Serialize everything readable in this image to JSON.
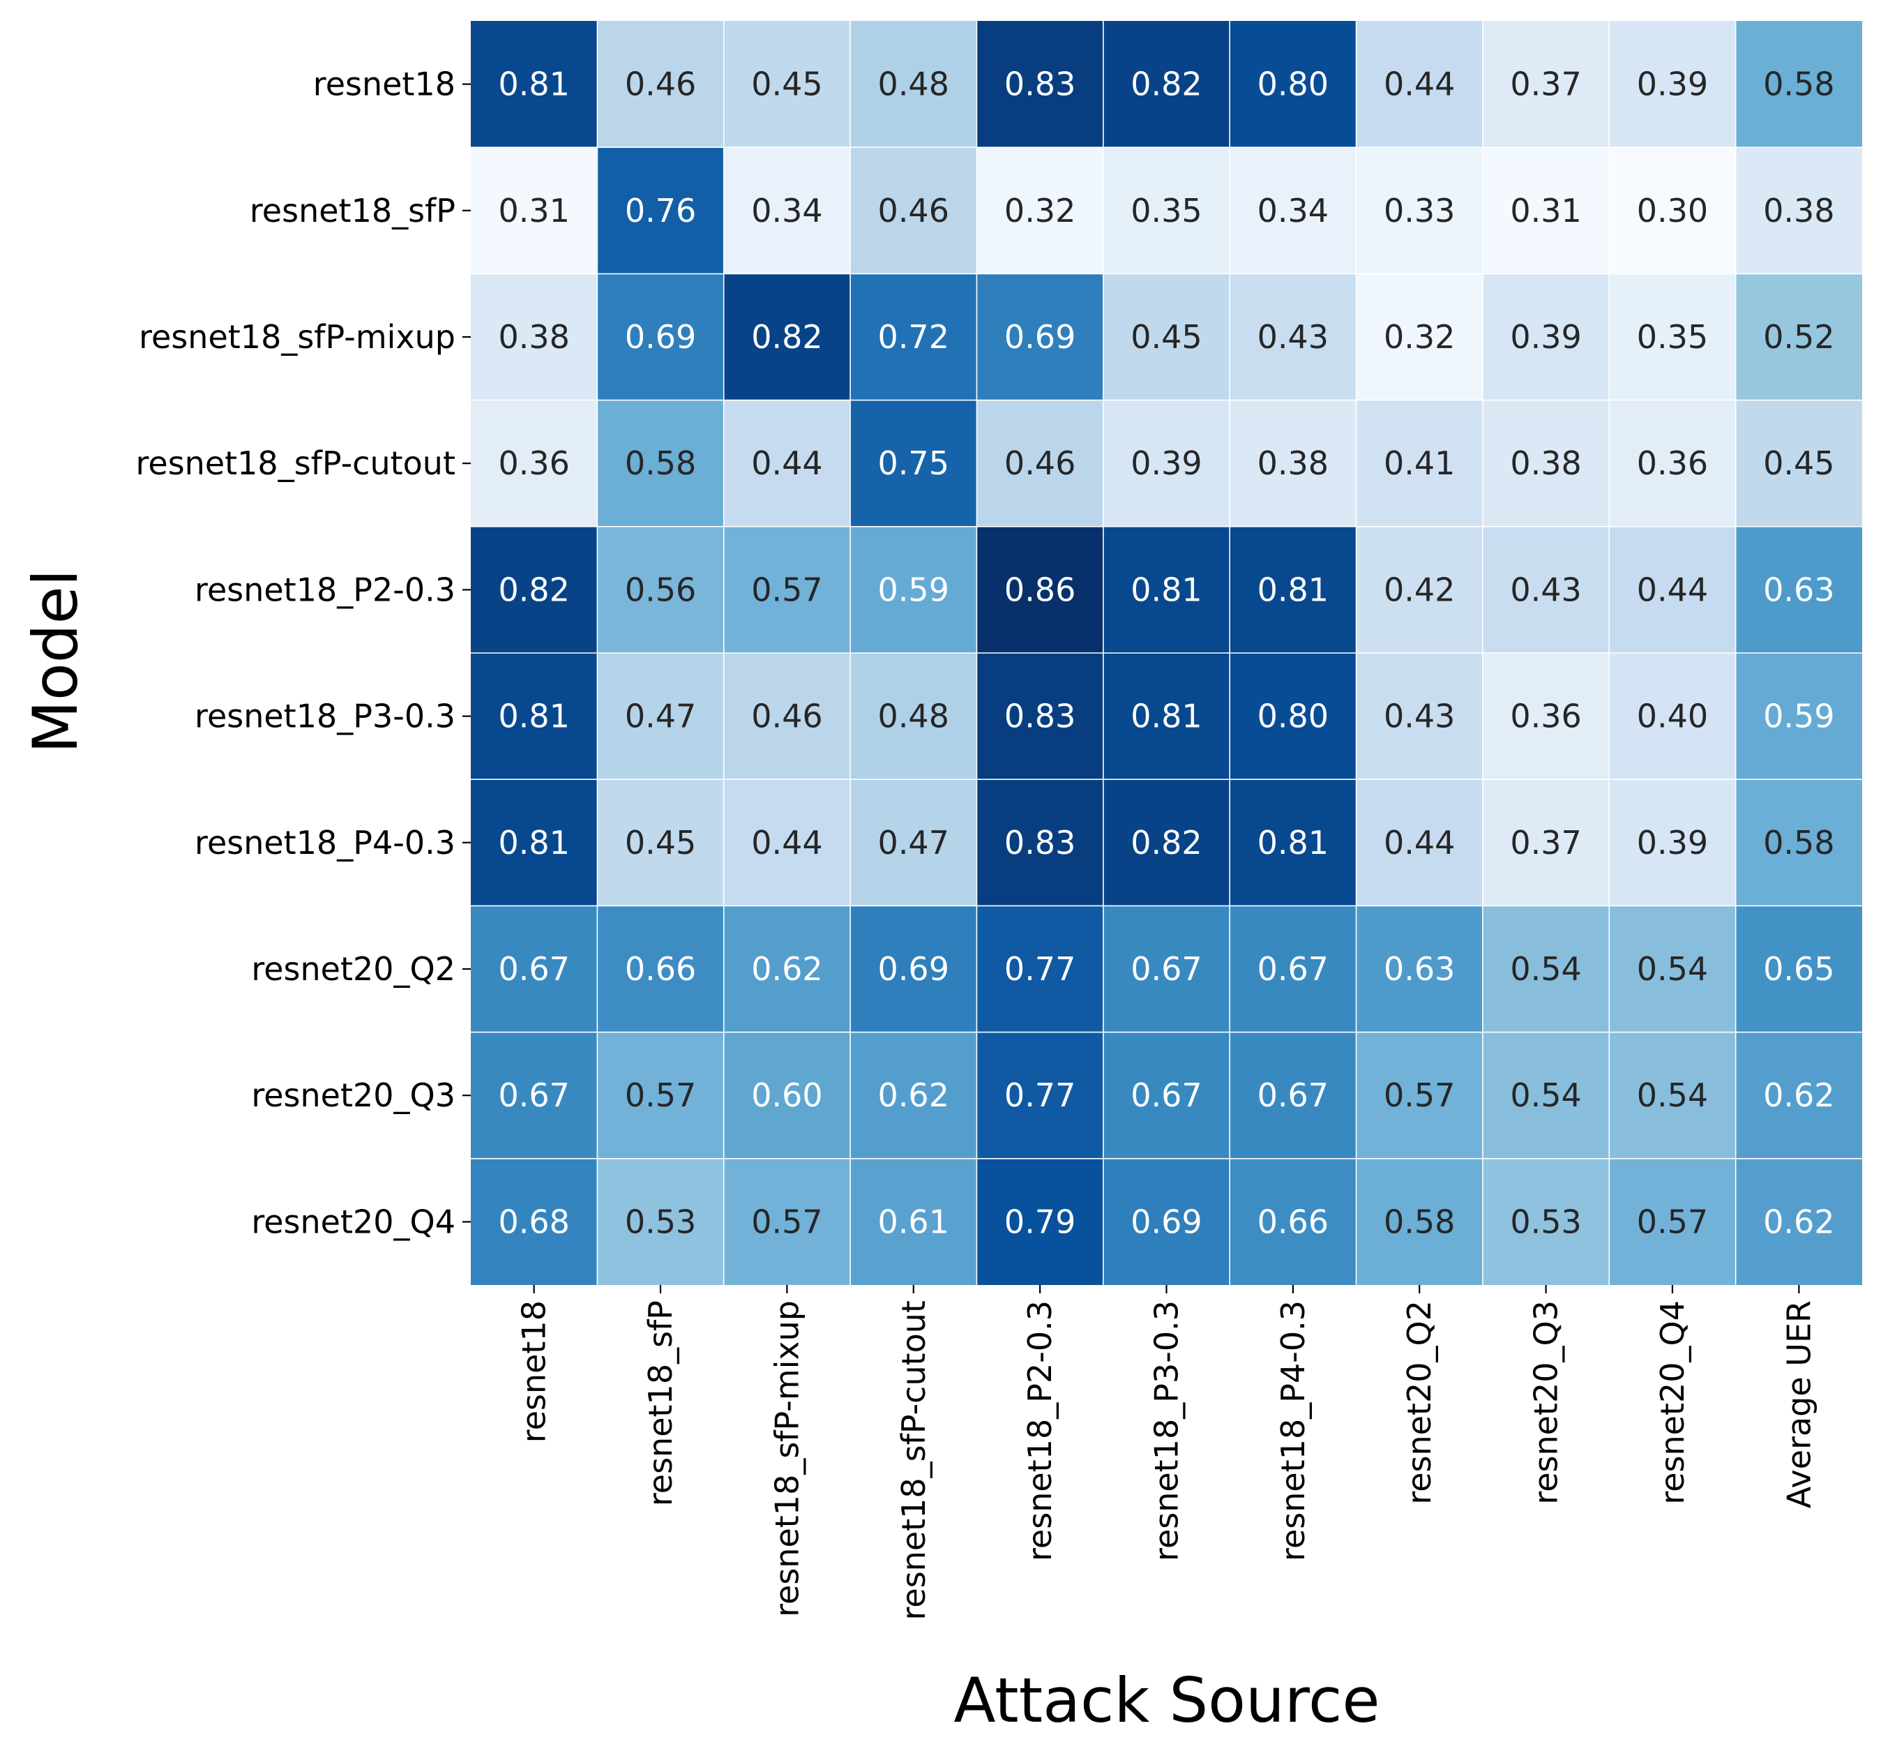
{
  "chart_data": {
    "type": "heatmap",
    "title": "",
    "xlabel": "Attack Source",
    "ylabel": "Model",
    "x_categories": [
      "resnet18",
      "resnet18_sfP",
      "resnet18_sfP-mixup",
      "resnet18_sfP-cutout",
      "resnet18_P2-0.3",
      "resnet18_P3-0.3",
      "resnet18_P4-0.3",
      "resnet20_Q2",
      "resnet20_Q3",
      "resnet20_Q4",
      "Average UER"
    ],
    "y_categories": [
      "resnet18",
      "resnet18_sfP",
      "resnet18_sfP-mixup",
      "resnet18_sfP-cutout",
      "resnet18_P2-0.3",
      "resnet18_P3-0.3",
      "resnet18_P4-0.3",
      "resnet20_Q2",
      "resnet20_Q3",
      "resnet20_Q4"
    ],
    "values": [
      [
        0.81,
        0.46,
        0.45,
        0.48,
        0.83,
        0.82,
        0.8,
        0.44,
        0.37,
        0.39,
        0.58
      ],
      [
        0.31,
        0.76,
        0.34,
        0.46,
        0.32,
        0.35,
        0.34,
        0.33,
        0.31,
        0.3,
        0.38
      ],
      [
        0.38,
        0.69,
        0.82,
        0.72,
        0.69,
        0.45,
        0.43,
        0.32,
        0.39,
        0.35,
        0.52
      ],
      [
        0.36,
        0.58,
        0.44,
        0.75,
        0.46,
        0.39,
        0.38,
        0.41,
        0.38,
        0.36,
        0.45
      ],
      [
        0.82,
        0.56,
        0.57,
        0.59,
        0.86,
        0.81,
        0.81,
        0.42,
        0.43,
        0.44,
        0.63
      ],
      [
        0.81,
        0.47,
        0.46,
        0.48,
        0.83,
        0.81,
        0.8,
        0.43,
        0.36,
        0.4,
        0.59
      ],
      [
        0.81,
        0.45,
        0.44,
        0.47,
        0.83,
        0.82,
        0.81,
        0.44,
        0.37,
        0.39,
        0.58
      ],
      [
        0.67,
        0.66,
        0.62,
        0.69,
        0.77,
        0.67,
        0.67,
        0.63,
        0.54,
        0.54,
        0.65
      ],
      [
        0.67,
        0.57,
        0.6,
        0.62,
        0.77,
        0.67,
        0.67,
        0.57,
        0.54,
        0.54,
        0.62
      ],
      [
        0.68,
        0.53,
        0.57,
        0.61,
        0.79,
        0.69,
        0.66,
        0.58,
        0.53,
        0.57,
        0.62
      ]
    ],
    "value_format": "2 decimals",
    "color_scale": {
      "name": "Blues",
      "min": 0.3,
      "max": 0.86,
      "low_color": "#f7fbff",
      "high_color": "#08306b"
    },
    "colorbar": false,
    "grid": true,
    "legend": "none"
  }
}
